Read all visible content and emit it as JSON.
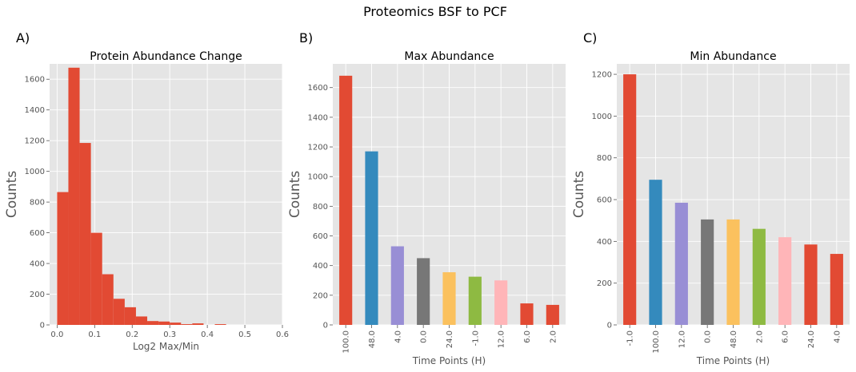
{
  "figure": {
    "title": "Proteomics BSF to PCF"
  },
  "chart_data": [
    {
      "type": "bar",
      "panel_label": "A)",
      "title": "Protein Abundance Change",
      "xlabel": "Log2 Max/Min",
      "ylabel": "Counts",
      "histogram": true,
      "bin_width": 0.03,
      "bin_starts": [
        0.0,
        0.03,
        0.06,
        0.09,
        0.12,
        0.15,
        0.18,
        0.21,
        0.24,
        0.27,
        0.3,
        0.33,
        0.36,
        0.39,
        0.42
      ],
      "values": [
        865,
        1675,
        1185,
        600,
        330,
        170,
        115,
        55,
        25,
        22,
        15,
        5,
        10,
        0,
        5
      ],
      "xlim": [
        -0.02,
        0.6
      ],
      "ylim": [
        0,
        1700
      ],
      "xticks": [
        0.0,
        0.1,
        0.2,
        0.3,
        0.4,
        0.5,
        0.6
      ],
      "xtick_labels": [
        "0.0",
        "0.1",
        "0.2",
        "0.3",
        "0.4",
        "0.5",
        "0.6"
      ],
      "yticks": [
        0,
        200,
        400,
        600,
        800,
        1000,
        1200,
        1400,
        1600
      ],
      "color": "#E24A33",
      "grid": true
    },
    {
      "type": "bar",
      "panel_label": "B)",
      "title": "Max Abundance",
      "xlabel": "Time Points (H)",
      "ylabel": "Counts",
      "categories": [
        "100.0",
        "48.0",
        "4.0",
        "0.0",
        "24.0",
        "-1.0",
        "12.0",
        "6.0",
        "2.0"
      ],
      "values": [
        1680,
        1170,
        530,
        450,
        355,
        325,
        300,
        145,
        135
      ],
      "colors": [
        "#E24A33",
        "#348ABD",
        "#988ED5",
        "#777777",
        "#FBC15E",
        "#8EBA42",
        "#FFB5B8",
        "#E24A33",
        "#E24A33"
      ],
      "ylim": [
        0,
        1760
      ],
      "yticks": [
        0,
        200,
        400,
        600,
        800,
        1000,
        1200,
        1400,
        1600
      ],
      "grid": true
    },
    {
      "type": "bar",
      "panel_label": "C)",
      "title": "Min Abundance",
      "xlabel": "Time Points (H)",
      "ylabel": "Counts",
      "categories": [
        "-1.0",
        "100.0",
        "12.0",
        "0.0",
        "48.0",
        "2.0",
        "6.0",
        "24.0",
        "4.0"
      ],
      "values": [
        1200,
        695,
        585,
        505,
        505,
        460,
        420,
        385,
        340
      ],
      "colors": [
        "#E24A33",
        "#348ABD",
        "#988ED5",
        "#777777",
        "#FBC15E",
        "#8EBA42",
        "#FFB5B8",
        "#E24A33",
        "#E24A33"
      ],
      "ylim": [
        0,
        1250
      ],
      "yticks": [
        0,
        200,
        400,
        600,
        800,
        1000,
        1200
      ],
      "grid": true
    }
  ]
}
